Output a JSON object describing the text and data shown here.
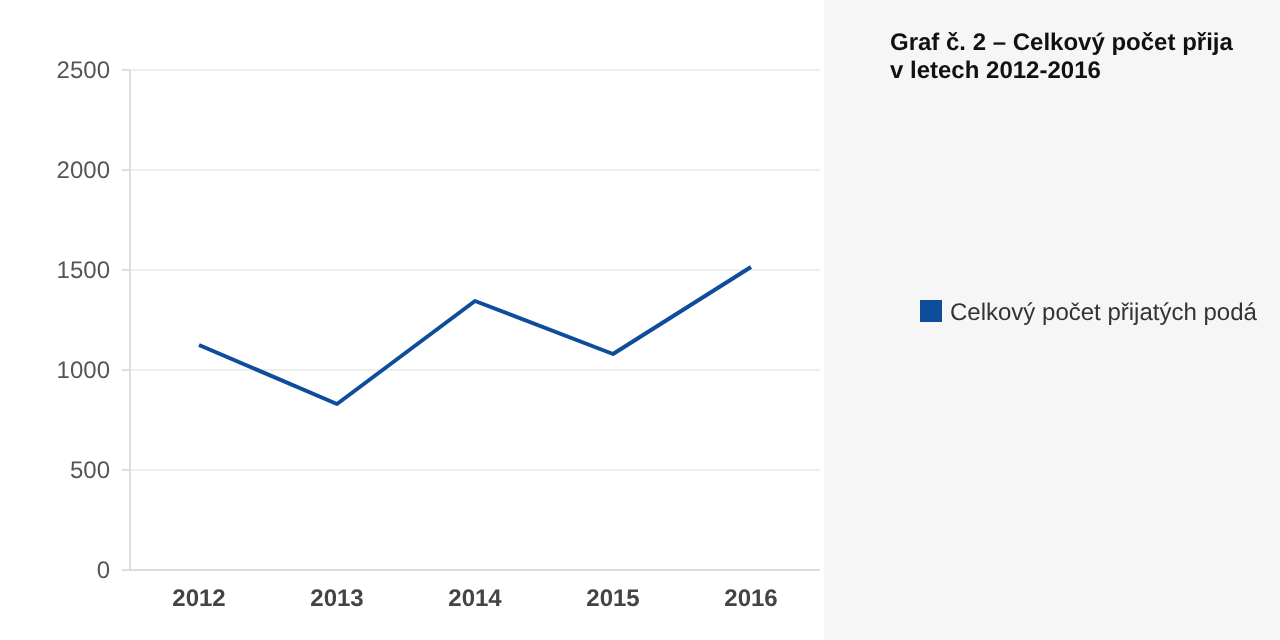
{
  "chart_data": {
    "type": "line",
    "title": "Graf č. 2 – Celkový počet přija\nv letech 2012-2016",
    "categories": [
      "2012",
      "2013",
      "2014",
      "2015",
      "2016"
    ],
    "series": [
      {
        "name": "Celkový počet přijatých podá",
        "color": "#0d4d9c",
        "values": [
          1125,
          830,
          1345,
          1080,
          1515
        ]
      }
    ],
    "ylim": [
      0,
      2500
    ],
    "yticks": [
      0,
      500,
      1000,
      1500,
      2000,
      2500
    ],
    "grid": "y",
    "legend": "right",
    "marker": "none",
    "line_style": "solid"
  }
}
